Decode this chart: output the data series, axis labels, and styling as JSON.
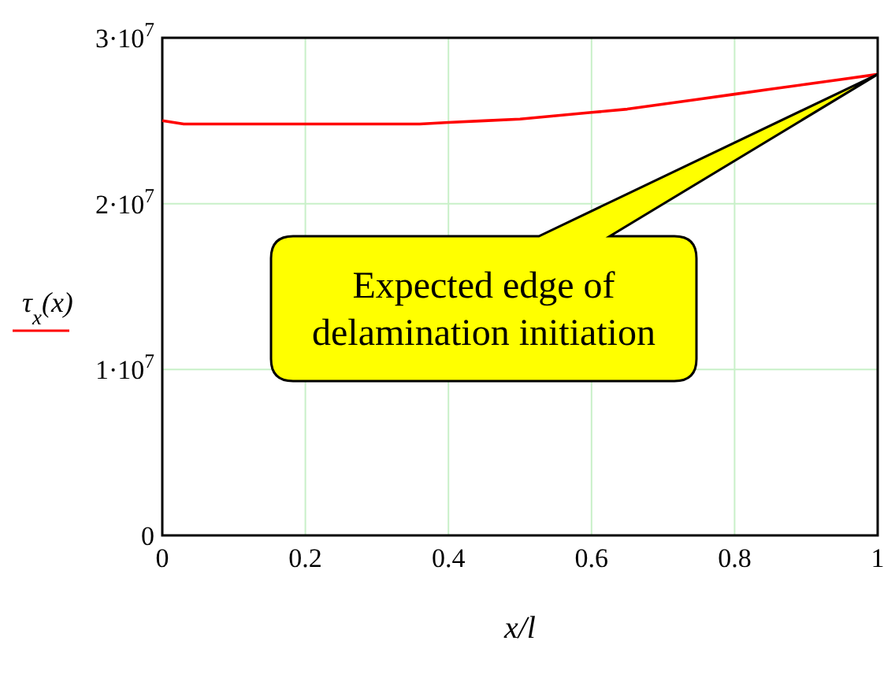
{
  "chart_data": {
    "type": "line",
    "xlabel": "x/l",
    "x": [
      0,
      0.03,
      0.1,
      0.2,
      0.3,
      0.36,
      0.4,
      0.45,
      0.5,
      0.55,
      0.6,
      0.65,
      0.7,
      0.75,
      0.8,
      0.85,
      0.9,
      0.95,
      1
    ],
    "series": [
      {
        "name": "τ$_{x}$(x)",
        "color": "#ff0000",
        "values": [
          25000000.0,
          24800000.0,
          24800000.0,
          24800000.0,
          24800000.0,
          24800000.0,
          24900000.0,
          25000000.0,
          25100000.0,
          25300000.0,
          25500000.0,
          25700000.0,
          26000000.0,
          26300000.0,
          26600000.0,
          26900000.0,
          27200000.0,
          27500000.0,
          27800000.0
        ]
      }
    ],
    "xlim": [
      0,
      1
    ],
    "xticks": [
      0,
      0.2,
      0.4,
      0.6,
      0.8,
      1
    ],
    "ylim": [
      0,
      30000000.0
    ],
    "yticks": [
      0,
      {
        "value": 10000000.0,
        "label": "1·10$^{7}$"
      },
      {
        "value": 20000000.0,
        "label": "2·10$^{7}$"
      },
      {
        "value": 30000000.0,
        "label": "3·10$^{7}$"
      }
    ],
    "grid": true,
    "marker": "none",
    "line_style": "solid",
    "annotations": [
      "Expected edge of delamination initiation"
    ]
  }
}
